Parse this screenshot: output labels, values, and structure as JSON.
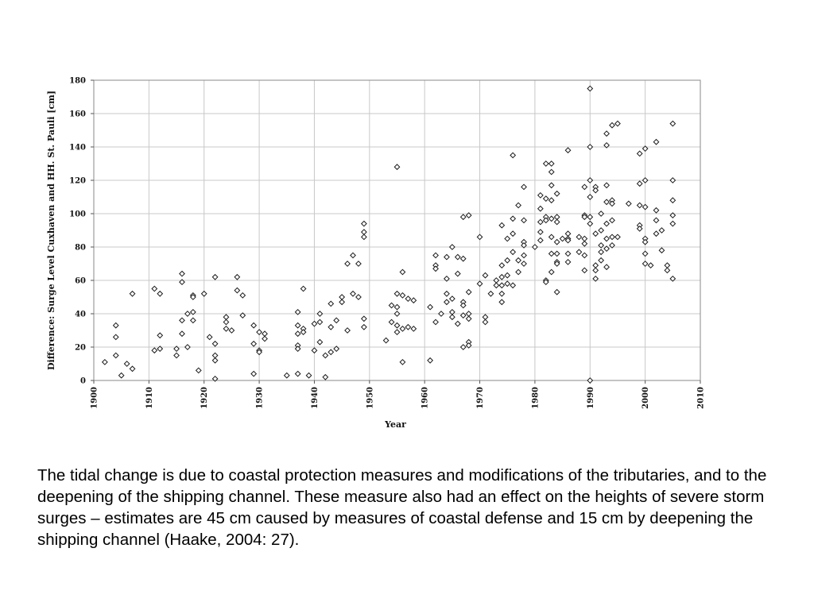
{
  "chart_data": {
    "type": "scatter",
    "xlabel": "Year",
    "ylabel": "Difference: Surge Level Cuxhaven and HH. St. Pauli [cm]",
    "xlim": [
      1900,
      2010
    ],
    "ylim": [
      0,
      180
    ],
    "x_ticks": [
      1900,
      1910,
      1920,
      1930,
      1940,
      1950,
      1960,
      1970,
      1980,
      1990,
      2000,
      2010
    ],
    "y_ticks": [
      0,
      20,
      40,
      60,
      80,
      100,
      120,
      140,
      160,
      180
    ],
    "grid": true,
    "marker": "diamond",
    "points": [
      [
        1902,
        11
      ],
      [
        1904,
        33
      ],
      [
        1904,
        26
      ],
      [
        1904,
        15
      ],
      [
        1905,
        3
      ],
      [
        1906,
        10
      ],
      [
        1907,
        52
      ],
      [
        1907,
        7
      ],
      [
        1911,
        55
      ],
      [
        1911,
        18
      ],
      [
        1912,
        52
      ],
      [
        1912,
        27
      ],
      [
        1912,
        19
      ],
      [
        1915,
        19
      ],
      [
        1915,
        15
      ],
      [
        1916,
        64
      ],
      [
        1916,
        59
      ],
      [
        1916,
        36
      ],
      [
        1916,
        28
      ],
      [
        1917,
        40
      ],
      [
        1917,
        20
      ],
      [
        1918,
        51
      ],
      [
        1918,
        50
      ],
      [
        1918,
        41
      ],
      [
        1918,
        36
      ],
      [
        1919,
        6
      ],
      [
        1920,
        52
      ],
      [
        1921,
        26
      ],
      [
        1922,
        62
      ],
      [
        1922,
        22
      ],
      [
        1922,
        15
      ],
      [
        1922,
        12
      ],
      [
        1922,
        1
      ],
      [
        1924,
        38
      ],
      [
        1924,
        35
      ],
      [
        1924,
        31
      ],
      [
        1925,
        30
      ],
      [
        1926,
        62
      ],
      [
        1926,
        54
      ],
      [
        1927,
        51
      ],
      [
        1927,
        39
      ],
      [
        1929,
        33
      ],
      [
        1929,
        22
      ],
      [
        1929,
        4
      ],
      [
        1930,
        29
      ],
      [
        1930,
        18
      ],
      [
        1930,
        17
      ],
      [
        1931,
        28
      ],
      [
        1931,
        25
      ],
      [
        1935,
        3
      ],
      [
        1937,
        41
      ],
      [
        1937,
        33
      ],
      [
        1937,
        28
      ],
      [
        1937,
        21
      ],
      [
        1937,
        19
      ],
      [
        1937,
        4
      ],
      [
        1938,
        55
      ],
      [
        1938,
        31
      ],
      [
        1938,
        29
      ],
      [
        1939,
        3
      ],
      [
        1940,
        34
      ],
      [
        1940,
        18
      ],
      [
        1941,
        40
      ],
      [
        1941,
        35
      ],
      [
        1941,
        23
      ],
      [
        1942,
        2
      ],
      [
        1942,
        15
      ],
      [
        1943,
        46
      ],
      [
        1943,
        32
      ],
      [
        1943,
        17
      ],
      [
        1944,
        36
      ],
      [
        1944,
        19
      ],
      [
        1945,
        50
      ],
      [
        1945,
        47
      ],
      [
        1946,
        70
      ],
      [
        1946,
        30
      ],
      [
        1947,
        75
      ],
      [
        1947,
        52
      ],
      [
        1948,
        70
      ],
      [
        1948,
        50
      ],
      [
        1949,
        94
      ],
      [
        1949,
        89
      ],
      [
        1949,
        86
      ],
      [
        1949,
        37
      ],
      [
        1949,
        32
      ],
      [
        1953,
        24
      ],
      [
        1954,
        45
      ],
      [
        1954,
        35
      ],
      [
        1955,
        128
      ],
      [
        1955,
        52
      ],
      [
        1955,
        40
      ],
      [
        1955,
        33
      ],
      [
        1955,
        29
      ],
      [
        1955,
        44
      ],
      [
        1956,
        65
      ],
      [
        1956,
        51
      ],
      [
        1956,
        31
      ],
      [
        1956,
        11
      ],
      [
        1957,
        49
      ],
      [
        1957,
        32
      ],
      [
        1958,
        48
      ],
      [
        1958,
        31
      ],
      [
        1961,
        44
      ],
      [
        1961,
        12
      ],
      [
        1962,
        75
      ],
      [
        1962,
        69
      ],
      [
        1962,
        67
      ],
      [
        1962,
        35
      ],
      [
        1963,
        40
      ],
      [
        1964,
        74
      ],
      [
        1964,
        61
      ],
      [
        1964,
        52
      ],
      [
        1964,
        47
      ],
      [
        1965,
        80
      ],
      [
        1965,
        49
      ],
      [
        1965,
        41
      ],
      [
        1965,
        38
      ],
      [
        1966,
        74
      ],
      [
        1966,
        64
      ],
      [
        1966,
        34
      ],
      [
        1967,
        98
      ],
      [
        1967,
        73
      ],
      [
        1967,
        47
      ],
      [
        1967,
        45
      ],
      [
        1967,
        39
      ],
      [
        1967,
        20
      ],
      [
        1968,
        99
      ],
      [
        1968,
        53
      ],
      [
        1968,
        40
      ],
      [
        1968,
        37
      ],
      [
        1968,
        23
      ],
      [
        1968,
        21
      ],
      [
        1970,
        86
      ],
      [
        1970,
        58
      ],
      [
        1971,
        38
      ],
      [
        1971,
        35
      ],
      [
        1971,
        63
      ],
      [
        1972,
        52
      ],
      [
        1973,
        60
      ],
      [
        1973,
        57
      ],
      [
        1974,
        93
      ],
      [
        1974,
        69
      ],
      [
        1974,
        62
      ],
      [
        1974,
        57
      ],
      [
        1974,
        47
      ],
      [
        1974,
        52
      ],
      [
        1975,
        85
      ],
      [
        1975,
        72
      ],
      [
        1975,
        63
      ],
      [
        1975,
        58
      ],
      [
        1976,
        135
      ],
      [
        1976,
        97
      ],
      [
        1976,
        88
      ],
      [
        1976,
        77
      ],
      [
        1976,
        57
      ],
      [
        1977,
        105
      ],
      [
        1977,
        72
      ],
      [
        1977,
        65
      ],
      [
        1978,
        116
      ],
      [
        1978,
        96
      ],
      [
        1978,
        83
      ],
      [
        1978,
        81
      ],
      [
        1978,
        75
      ],
      [
        1978,
        70
      ],
      [
        1980,
        80
      ],
      [
        1981,
        111
      ],
      [
        1981,
        103
      ],
      [
        1981,
        95
      ],
      [
        1981,
        89
      ],
      [
        1981,
        84
      ],
      [
        1982,
        130
      ],
      [
        1982,
        109
      ],
      [
        1982,
        98
      ],
      [
        1982,
        96
      ],
      [
        1982,
        60
      ],
      [
        1982,
        59
      ],
      [
        1983,
        130
      ],
      [
        1983,
        125
      ],
      [
        1983,
        117
      ],
      [
        1983,
        108
      ],
      [
        1983,
        97
      ],
      [
        1983,
        86
      ],
      [
        1983,
        76
      ],
      [
        1983,
        65
      ],
      [
        1984,
        112
      ],
      [
        1984,
        98
      ],
      [
        1984,
        95
      ],
      [
        1984,
        83
      ],
      [
        1984,
        76
      ],
      [
        1984,
        71
      ],
      [
        1984,
        70
      ],
      [
        1984,
        53
      ],
      [
        1985,
        85
      ],
      [
        1986,
        138
      ],
      [
        1986,
        88
      ],
      [
        1986,
        85
      ],
      [
        1986,
        84
      ],
      [
        1986,
        76
      ],
      [
        1986,
        71
      ],
      [
        1988,
        86
      ],
      [
        1988,
        77
      ],
      [
        1989,
        116
      ],
      [
        1989,
        99
      ],
      [
        1989,
        98
      ],
      [
        1989,
        85
      ],
      [
        1989,
        82
      ],
      [
        1989,
        75
      ],
      [
        1989,
        66
      ],
      [
        1990,
        175
      ],
      [
        1990,
        140
      ],
      [
        1990,
        120
      ],
      [
        1990,
        110
      ],
      [
        1990,
        98
      ],
      [
        1990,
        94
      ],
      [
        1990,
        0
      ],
      [
        1991,
        116
      ],
      [
        1991,
        114
      ],
      [
        1991,
        88
      ],
      [
        1991,
        69
      ],
      [
        1991,
        66
      ],
      [
        1991,
        61
      ],
      [
        1992,
        100
      ],
      [
        1992,
        90
      ],
      [
        1992,
        81
      ],
      [
        1992,
        77
      ],
      [
        1992,
        72
      ],
      [
        1993,
        148
      ],
      [
        1993,
        141
      ],
      [
        1993,
        117
      ],
      [
        1993,
        107
      ],
      [
        1993,
        94
      ],
      [
        1993,
        85
      ],
      [
        1993,
        79
      ],
      [
        1993,
        68
      ],
      [
        1994,
        153
      ],
      [
        1994,
        108
      ],
      [
        1994,
        106
      ],
      [
        1994,
        96
      ],
      [
        1994,
        86
      ],
      [
        1994,
        81
      ],
      [
        1995,
        154
      ],
      [
        1995,
        86
      ],
      [
        1997,
        106
      ],
      [
        1999,
        136
      ],
      [
        1999,
        118
      ],
      [
        1999,
        105
      ],
      [
        1999,
        93
      ],
      [
        1999,
        91
      ],
      [
        2000,
        139
      ],
      [
        2000,
        120
      ],
      [
        2000,
        104
      ],
      [
        2000,
        85
      ],
      [
        2000,
        83
      ],
      [
        2000,
        76
      ],
      [
        2000,
        70
      ],
      [
        2001,
        69
      ],
      [
        2002,
        143
      ],
      [
        2002,
        102
      ],
      [
        2002,
        96
      ],
      [
        2002,
        88
      ],
      [
        2003,
        90
      ],
      [
        2003,
        78
      ],
      [
        2004,
        69
      ],
      [
        2004,
        66
      ],
      [
        2005,
        154
      ],
      [
        2005,
        120
      ],
      [
        2005,
        108
      ],
      [
        2005,
        99
      ],
      [
        2005,
        94
      ],
      [
        2005,
        61
      ]
    ]
  },
  "caption": "The tidal change is due to coastal protection measures and modifications of the tributaries, and to the deepening of the shipping channel. These measure also had an effect on the heights of severe storm surges – estimates are 45 cm caused by measures of coastal defense and 15 cm by deepening the shipping channel (Haake, 2004: 27)."
}
